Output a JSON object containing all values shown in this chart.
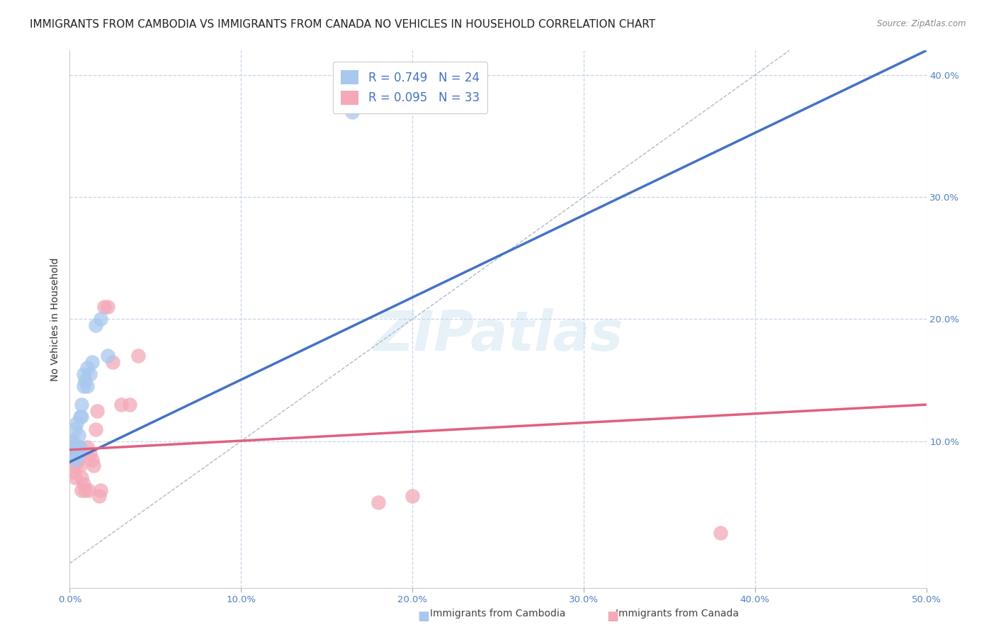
{
  "title": "IMMIGRANTS FROM CAMBODIA VS IMMIGRANTS FROM CANADA NO VEHICLES IN HOUSEHOLD CORRELATION CHART",
  "source": "Source: ZipAtlas.com",
  "ylabel": "No Vehicles in Household",
  "xlim": [
    0.0,
    0.5
  ],
  "ylim": [
    -0.02,
    0.42
  ],
  "xticks": [
    0.0,
    0.1,
    0.2,
    0.3,
    0.4,
    0.5
  ],
  "yticks_right": [
    0.1,
    0.2,
    0.3,
    0.4
  ],
  "cambodia_color": "#a8c8ee",
  "canada_color": "#f4a8b8",
  "cambodia_R": 0.749,
  "cambodia_N": 24,
  "canada_R": 0.095,
  "canada_N": 33,
  "cambodia_x": [
    0.001,
    0.001,
    0.002,
    0.003,
    0.003,
    0.004,
    0.004,
    0.005,
    0.005,
    0.006,
    0.006,
    0.007,
    0.007,
    0.008,
    0.008,
    0.009,
    0.01,
    0.01,
    0.012,
    0.013,
    0.015,
    0.018,
    0.022,
    0.165
  ],
  "cambodia_y": [
    0.09,
    0.095,
    0.1,
    0.11,
    0.085,
    0.115,
    0.095,
    0.105,
    0.09,
    0.12,
    0.095,
    0.13,
    0.12,
    0.155,
    0.145,
    0.15,
    0.16,
    0.145,
    0.155,
    0.165,
    0.195,
    0.2,
    0.17,
    0.37
  ],
  "canada_x": [
    0.001,
    0.001,
    0.002,
    0.002,
    0.003,
    0.003,
    0.004,
    0.004,
    0.005,
    0.005,
    0.006,
    0.007,
    0.007,
    0.008,
    0.009,
    0.01,
    0.011,
    0.012,
    0.013,
    0.014,
    0.015,
    0.016,
    0.017,
    0.018,
    0.02,
    0.022,
    0.025,
    0.03,
    0.035,
    0.04,
    0.18,
    0.2,
    0.38
  ],
  "canada_y": [
    0.1,
    0.095,
    0.09,
    0.075,
    0.08,
    0.07,
    0.09,
    0.085,
    0.095,
    0.085,
    0.08,
    0.07,
    0.06,
    0.065,
    0.06,
    0.095,
    0.06,
    0.09,
    0.085,
    0.08,
    0.11,
    0.125,
    0.055,
    0.06,
    0.21,
    0.21,
    0.165,
    0.13,
    0.13,
    0.17,
    0.05,
    0.055,
    0.025
  ],
  "blue_line_x": [
    0.0,
    0.5
  ],
  "blue_line_y": [
    0.083,
    0.42
  ],
  "pink_line_x": [
    0.0,
    0.5
  ],
  "pink_line_y": [
    0.093,
    0.13
  ],
  "diag_line_x": [
    0.0,
    0.42
  ],
  "diag_line_y": [
    0.0,
    0.42
  ],
  "watermark_text": "ZIPatlas",
  "background_color": "#ffffff",
  "grid_color": "#c8d4e8",
  "title_fontsize": 11,
  "axis_fontsize": 10,
  "tick_fontsize": 9.5
}
